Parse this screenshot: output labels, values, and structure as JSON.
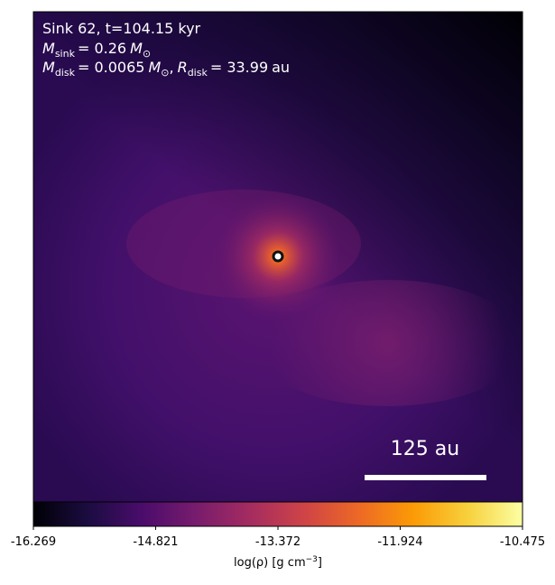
{
  "chart_data": {
    "type": "image",
    "annotation_lines": [
      [
        "Sink 62, t=104.15 kyr"
      ],
      [
        "M",
        "sink",
        "= 0.26",
        "M",
        "⊙"
      ],
      [
        "M",
        "disk",
        "= 0.0065",
        "M",
        "⊙",
        ",",
        "R",
        "disk",
        "= 33.99",
        "au"
      ]
    ],
    "scale_bar_label": "125 au",
    "colorbar": {
      "label": [
        "log(ρ) [g cm",
        "−3",
        "]"
      ],
      "colormap": "inferno",
      "lim": [
        -16.269,
        -10.475
      ],
      "ticks": [
        -16.269,
        -14.821,
        -13.372,
        -11.924,
        -10.475
      ]
    }
  }
}
